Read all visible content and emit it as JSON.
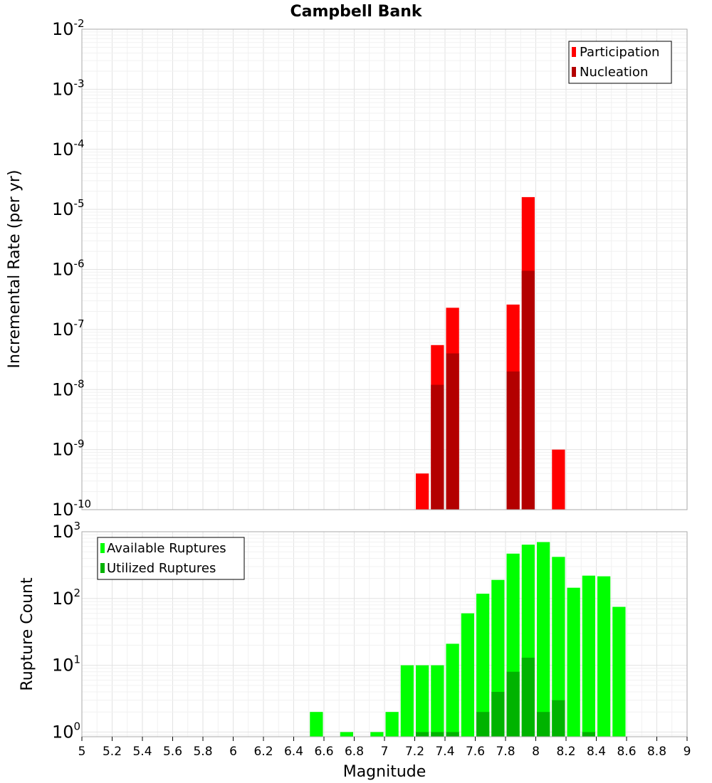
{
  "chart_data": {
    "title": "Campbell Bank",
    "xlabel": "Magnitude",
    "xlim": [
      5,
      9
    ],
    "x_ticks": [
      "5",
      "5.2",
      "5.4",
      "5.6",
      "5.8",
      "6",
      "6.2",
      "6.4",
      "6.6",
      "6.8",
      "7",
      "7.2",
      "7.4",
      "7.6",
      "7.8",
      "8",
      "8.2",
      "8.4",
      "8.6",
      "8.8",
      "9"
    ],
    "bin_width": 0.1,
    "panels": [
      {
        "id": "rate",
        "type": "bar",
        "ylabel": "Incremental Rate (per yr)",
        "yscale": "log",
        "ylim_exp": [
          -10,
          -2
        ],
        "ytick_exps": [
          "-10",
          "-9",
          "-8",
          "-7",
          "-6",
          "-5",
          "-4",
          "-3",
          "-2"
        ],
        "grid": true,
        "legend_position": "top-right",
        "series": [
          {
            "name": "Participation",
            "color": "#ff0000",
            "x": [
              7.25,
              7.35,
              7.45,
              7.85,
              7.95,
              8.15
            ],
            "values": [
              4e-10,
              5.5e-08,
              2.3e-07,
              2.6e-07,
              1.6e-05,
              1e-09
            ]
          },
          {
            "name": "Nucleation",
            "color": "#b30000",
            "x": [
              7.35,
              7.45,
              7.85,
              7.95
            ],
            "values": [
              1.2e-08,
              4e-08,
              2e-08,
              9.5e-07
            ]
          }
        ]
      },
      {
        "id": "count",
        "type": "bar",
        "ylabel": "Rupture Count",
        "yscale": "log",
        "ylim_exp": [
          -0.07,
          3
        ],
        "ytick_exps": [
          "0",
          "1",
          "2",
          "3"
        ],
        "grid": true,
        "legend_position": "top-left",
        "series": [
          {
            "name": "Available Ruptures",
            "color": "#00ff00",
            "x": [
              6.55,
              6.75,
              6.95,
              7.05,
              7.15,
              7.25,
              7.35,
              7.45,
              7.55,
              7.65,
              7.75,
              7.85,
              7.95,
              8.05,
              8.15,
              8.25,
              8.35,
              8.45,
              8.55
            ],
            "values": [
              2,
              1,
              1,
              2,
              10,
              10,
              10,
              21,
              60,
              118,
              190,
              470,
              640,
              700,
              420,
              145,
              220,
              215,
              75
            ]
          },
          {
            "name": "Utilized Ruptures",
            "color": "#00b300",
            "x": [
              7.25,
              7.35,
              7.45,
              7.65,
              7.75,
              7.85,
              7.95,
              8.05,
              8.15,
              8.35
            ],
            "values": [
              1,
              1,
              1,
              2,
              4,
              8,
              13,
              2,
              3,
              1
            ]
          }
        ]
      }
    ]
  }
}
